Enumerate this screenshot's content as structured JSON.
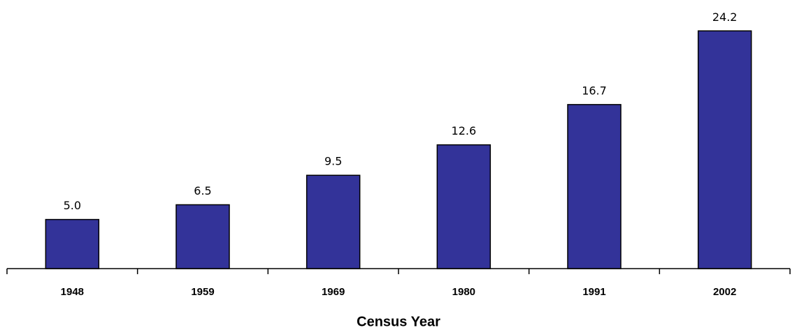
{
  "chart_data": {
    "type": "bar",
    "x_label": "Census Year",
    "categories": [
      "1948",
      "1959",
      "1969",
      "1980",
      "1991",
      "2002"
    ],
    "values": [
      5.0,
      6.5,
      9.5,
      12.6,
      16.7,
      24.2
    ],
    "value_labels": [
      "5.0",
      "6.5",
      "9.5",
      "12.6",
      "16.7",
      "24.2"
    ],
    "color": "#333399",
    "ylim": [
      0,
      25
    ]
  }
}
